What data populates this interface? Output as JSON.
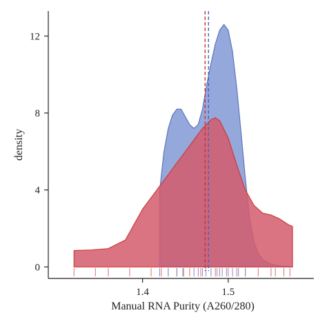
{
  "chart_data": {
    "type": "area",
    "title": "",
    "xlabel": "Manual RNA Purity (A260/280)",
    "ylabel": "density",
    "xlim": [
      1.29,
      1.6
    ],
    "ylim": [
      -0.6,
      13.3
    ],
    "x_ticks": [
      1.4,
      1.5
    ],
    "x_tick_labels": [
      "1.4",
      "1.5"
    ],
    "y_ticks": [
      0,
      4,
      8,
      12
    ],
    "y_tick_labels": [
      "0",
      "4",
      "8",
      "12"
    ],
    "grid": false,
    "legend": "none",
    "series": [
      {
        "color": "#8fa3d9",
        "stroke": "#5d74bd",
        "x": [
          1.42,
          1.425,
          1.43,
          1.435,
          1.44,
          1.445,
          1.45,
          1.455,
          1.46,
          1.465,
          1.47,
          1.475,
          1.48,
          1.485,
          1.49,
          1.495,
          1.5,
          1.505,
          1.51,
          1.515,
          1.52,
          1.525,
          1.53,
          1.535,
          1.54,
          1.545,
          1.55,
          1.555,
          1.56,
          1.565,
          1.57,
          1.575
        ],
        "y": [
          4.0,
          6.0,
          7.2,
          7.9,
          8.2,
          8.2,
          7.8,
          7.4,
          7.2,
          7.4,
          8.2,
          9.5,
          10.6,
          11.6,
          12.3,
          12.6,
          12.3,
          11.2,
          9.3,
          7.0,
          4.6,
          2.5,
          1.3,
          0.7,
          0.4,
          0.25,
          0.15,
          0.1,
          0.06,
          0.04,
          0.03,
          0.02
        ]
      },
      {
        "color": "#d45c6c",
        "stroke": "#cc3a3a",
        "x": [
          1.32,
          1.34,
          1.36,
          1.38,
          1.39,
          1.4,
          1.41,
          1.42,
          1.43,
          1.44,
          1.45,
          1.46,
          1.47,
          1.48,
          1.485,
          1.49,
          1.5,
          1.51,
          1.52,
          1.53,
          1.54,
          1.55,
          1.56,
          1.57,
          1.575
        ],
        "y": [
          0.85,
          0.88,
          0.95,
          1.4,
          2.2,
          3.0,
          3.6,
          4.2,
          4.8,
          5.4,
          6.0,
          6.6,
          7.2,
          7.65,
          7.75,
          7.6,
          6.7,
          5.3,
          4.0,
          3.2,
          2.8,
          2.7,
          2.5,
          2.2,
          2.1
        ]
      }
    ],
    "vlines": [
      {
        "x": 1.473,
        "color": "#d32f2f",
        "style": "dashed"
      },
      {
        "x": 1.477,
        "color": "#4863b5",
        "style": "dashed"
      }
    ],
    "rug": [
      {
        "color": "#d87070",
        "x": [
          1.32,
          1.345,
          1.36,
          1.385,
          1.41,
          1.422,
          1.43,
          1.44,
          1.447,
          1.455,
          1.465,
          1.47,
          1.48,
          1.485,
          1.49,
          1.5,
          1.51,
          1.52,
          1.535,
          1.55,
          1.555,
          1.565,
          1.572
        ]
      },
      {
        "color": "#7b8fd0",
        "x": [
          1.42,
          1.43,
          1.44,
          1.448,
          1.46,
          1.468,
          1.474,
          1.48,
          1.487,
          1.493,
          1.498,
          1.505,
          1.512,
          1.52
        ]
      }
    ]
  }
}
